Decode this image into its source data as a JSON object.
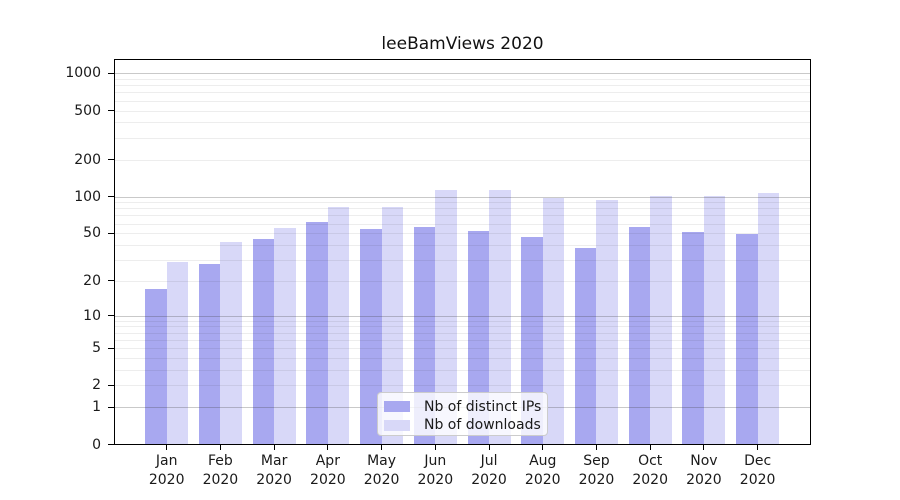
{
  "chart_data": {
    "type": "bar",
    "title": "leeBamViews 2020",
    "categories": [
      "Jan",
      "Feb",
      "Mar",
      "Apr",
      "May",
      "Jun",
      "Jul",
      "Aug",
      "Sep",
      "Oct",
      "Nov",
      "Dec"
    ],
    "x_tick_year": "2020",
    "series": [
      {
        "name": "Nb of distinct IPs",
        "color": "#a8a8f0",
        "values": [
          17,
          28,
          45,
          62,
          54,
          56,
          52,
          47,
          38,
          56,
          51,
          49
        ]
      },
      {
        "name": "Nb of downloads",
        "color": "#d8d8f8",
        "values": [
          29,
          42,
          55,
          82,
          82,
          113,
          113,
          98,
          94,
          101,
          102,
          106
        ]
      }
    ],
    "y_axis": {
      "scale": "log10(value+1)",
      "tick_labels": [
        "0",
        "1",
        "2",
        "5",
        "10",
        "20",
        "50",
        "100",
        "200",
        "500",
        "1000"
      ],
      "tick_values": [
        0,
        1,
        2,
        5,
        10,
        20,
        50,
        100,
        200,
        500,
        1000
      ],
      "major_grid_values": [
        1,
        10,
        100,
        1000
      ],
      "minor_grid_values": [
        2,
        3,
        4,
        5,
        6,
        7,
        8,
        9,
        20,
        30,
        40,
        50,
        60,
        70,
        80,
        90,
        200,
        300,
        400,
        500,
        600,
        700,
        800,
        900
      ],
      "ylim": [
        0,
        1400
      ]
    },
    "legend": {
      "position": "lower center",
      "entries": [
        "Nb of distinct IPs",
        "Nb of downloads"
      ]
    },
    "grid": "on"
  },
  "colors": {
    "background": "#ffffff",
    "spine": "#000000",
    "series_ips": "#a8a8f0",
    "series_downloads": "#d8d8f8",
    "major_grid": "rgba(60,60,60,0.28)",
    "minor_grid": "rgba(60,60,60,0.09)",
    "legend_border": "#cccccc"
  }
}
